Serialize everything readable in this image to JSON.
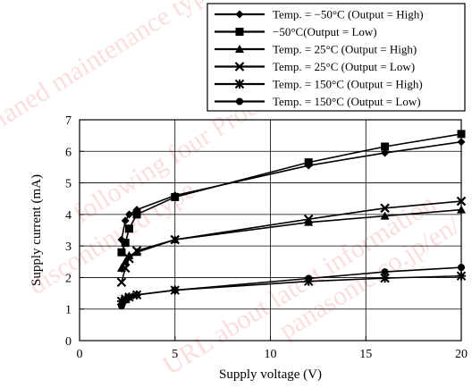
{
  "chart_data": {
    "type": "line",
    "xlabel": "Supply voltage  (V)",
    "ylabel": "Supply current  (mA)",
    "xlim": [
      0,
      20
    ],
    "ylim": [
      0,
      7
    ],
    "xticks": [
      0,
      5,
      10,
      15,
      20
    ],
    "yticks": [
      0,
      1,
      2,
      3,
      4,
      5,
      6,
      7
    ],
    "grid": true,
    "legend_position": "top-right",
    "series": [
      {
        "name": "Temp. = −50°C (Output = High)",
        "marker": "diamond",
        "x": [
          2.2,
          2.4,
          2.6,
          3.0,
          5.0,
          12.0,
          16.0,
          20.0
        ],
        "y": [
          3.2,
          3.8,
          4.0,
          4.15,
          4.6,
          5.55,
          5.95,
          6.3
        ]
      },
      {
        "name": "−50°C(Output = Low)",
        "marker": "square",
        "x": [
          2.2,
          2.4,
          2.6,
          3.0,
          5.0,
          12.0,
          16.0,
          20.0
        ],
        "y": [
          2.8,
          3.1,
          3.55,
          4.0,
          4.55,
          5.65,
          6.15,
          6.55
        ]
      },
      {
        "name": "Temp. = 25°C (Output = High)",
        "marker": "triangle",
        "x": [
          2.2,
          2.4,
          2.6,
          3.0,
          5.0,
          12.0,
          16.0,
          20.0
        ],
        "y": [
          2.3,
          2.5,
          2.7,
          2.8,
          3.2,
          3.75,
          3.95,
          4.15
        ]
      },
      {
        "name": "Temp. = 25°C (Output = Low)",
        "marker": "x",
        "x": [
          2.2,
          2.4,
          2.6,
          3.0,
          5.0,
          12.0,
          16.0,
          20.0
        ],
        "y": [
          1.85,
          2.3,
          2.6,
          2.85,
          3.2,
          3.85,
          4.2,
          4.42
        ]
      },
      {
        "name": "Temp. = 150°C (Output = High)",
        "marker": "star",
        "x": [
          2.2,
          2.4,
          2.6,
          3.0,
          5.0,
          12.0,
          16.0,
          20.0
        ],
        "y": [
          1.25,
          1.32,
          1.38,
          1.45,
          1.6,
          1.88,
          1.98,
          2.05
        ]
      },
      {
        "name": "Temp. = 150°C (Output = Low)",
        "marker": "circle",
        "x": [
          2.2,
          2.4,
          2.6,
          3.0,
          5.0,
          12.0,
          16.0,
          20.0
        ],
        "y": [
          1.1,
          1.28,
          1.38,
          1.45,
          1.6,
          1.97,
          2.18,
          2.32
        ]
      }
    ]
  },
  "watermark": {
    "lines": [
      "planed maintenance type",
      "discontinued type",
      "following four Products",
      "URL about latest information",
      "panasonic.co.jp/en/"
    ],
    "color": "#e53935"
  }
}
